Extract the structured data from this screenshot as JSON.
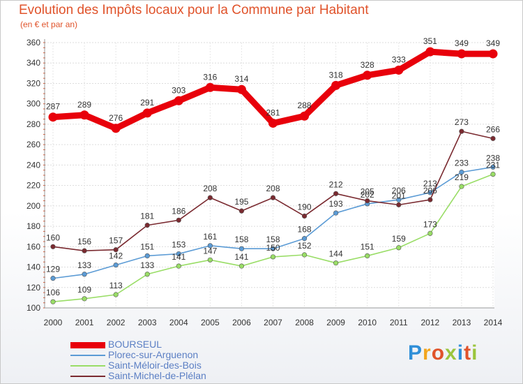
{
  "header": {
    "title": "Evolution des Impôts locaux pour la Commune par Habitant",
    "subtitle": "(en € et par an)"
  },
  "logo": {
    "text": "Proxiti",
    "colors": [
      "#2f8fd8",
      "#f2a51f",
      "#e0532b",
      "#9bc53d",
      "#2f8fd8",
      "#e0532b",
      "#9bc53d"
    ]
  },
  "chart_data": {
    "type": "line",
    "x": [
      2000,
      2001,
      2002,
      2003,
      2004,
      2005,
      2006,
      2007,
      2008,
      2009,
      2010,
      2011,
      2012,
      2013,
      2014
    ],
    "ylim": [
      100,
      360
    ],
    "yticks": [
      100,
      120,
      140,
      160,
      180,
      200,
      220,
      240,
      260,
      280,
      300,
      320,
      340,
      360
    ],
    "grid": true,
    "legend_position": "bottom-left",
    "series": [
      {
        "name": "BOURSEUL",
        "color": "#e8000b",
        "values": [
          287,
          289,
          276,
          291,
          303,
          316,
          314,
          281,
          288,
          318,
          328,
          333,
          351,
          349,
          349
        ]
      },
      {
        "name": "Plorec-sur-Arguenon",
        "color": "#5b9bd5",
        "values": [
          129,
          133,
          142,
          151,
          153,
          161,
          158,
          158,
          168,
          193,
          202,
          206,
          213,
          233,
          238
        ]
      },
      {
        "name": "Saint-Méloir-des-Bois",
        "color": "#99dd66",
        "values": [
          106,
          109,
          113,
          133,
          141,
          147,
          141,
          150,
          152,
          144,
          151,
          159,
          173,
          219,
          231
        ]
      },
      {
        "name": "Saint-Michel-de-Plélan",
        "color": "#7a2a30",
        "values": [
          160,
          156,
          157,
          181,
          186,
          208,
          195,
          208,
          190,
          212,
          205,
          201,
          206,
          273,
          266
        ]
      }
    ]
  }
}
